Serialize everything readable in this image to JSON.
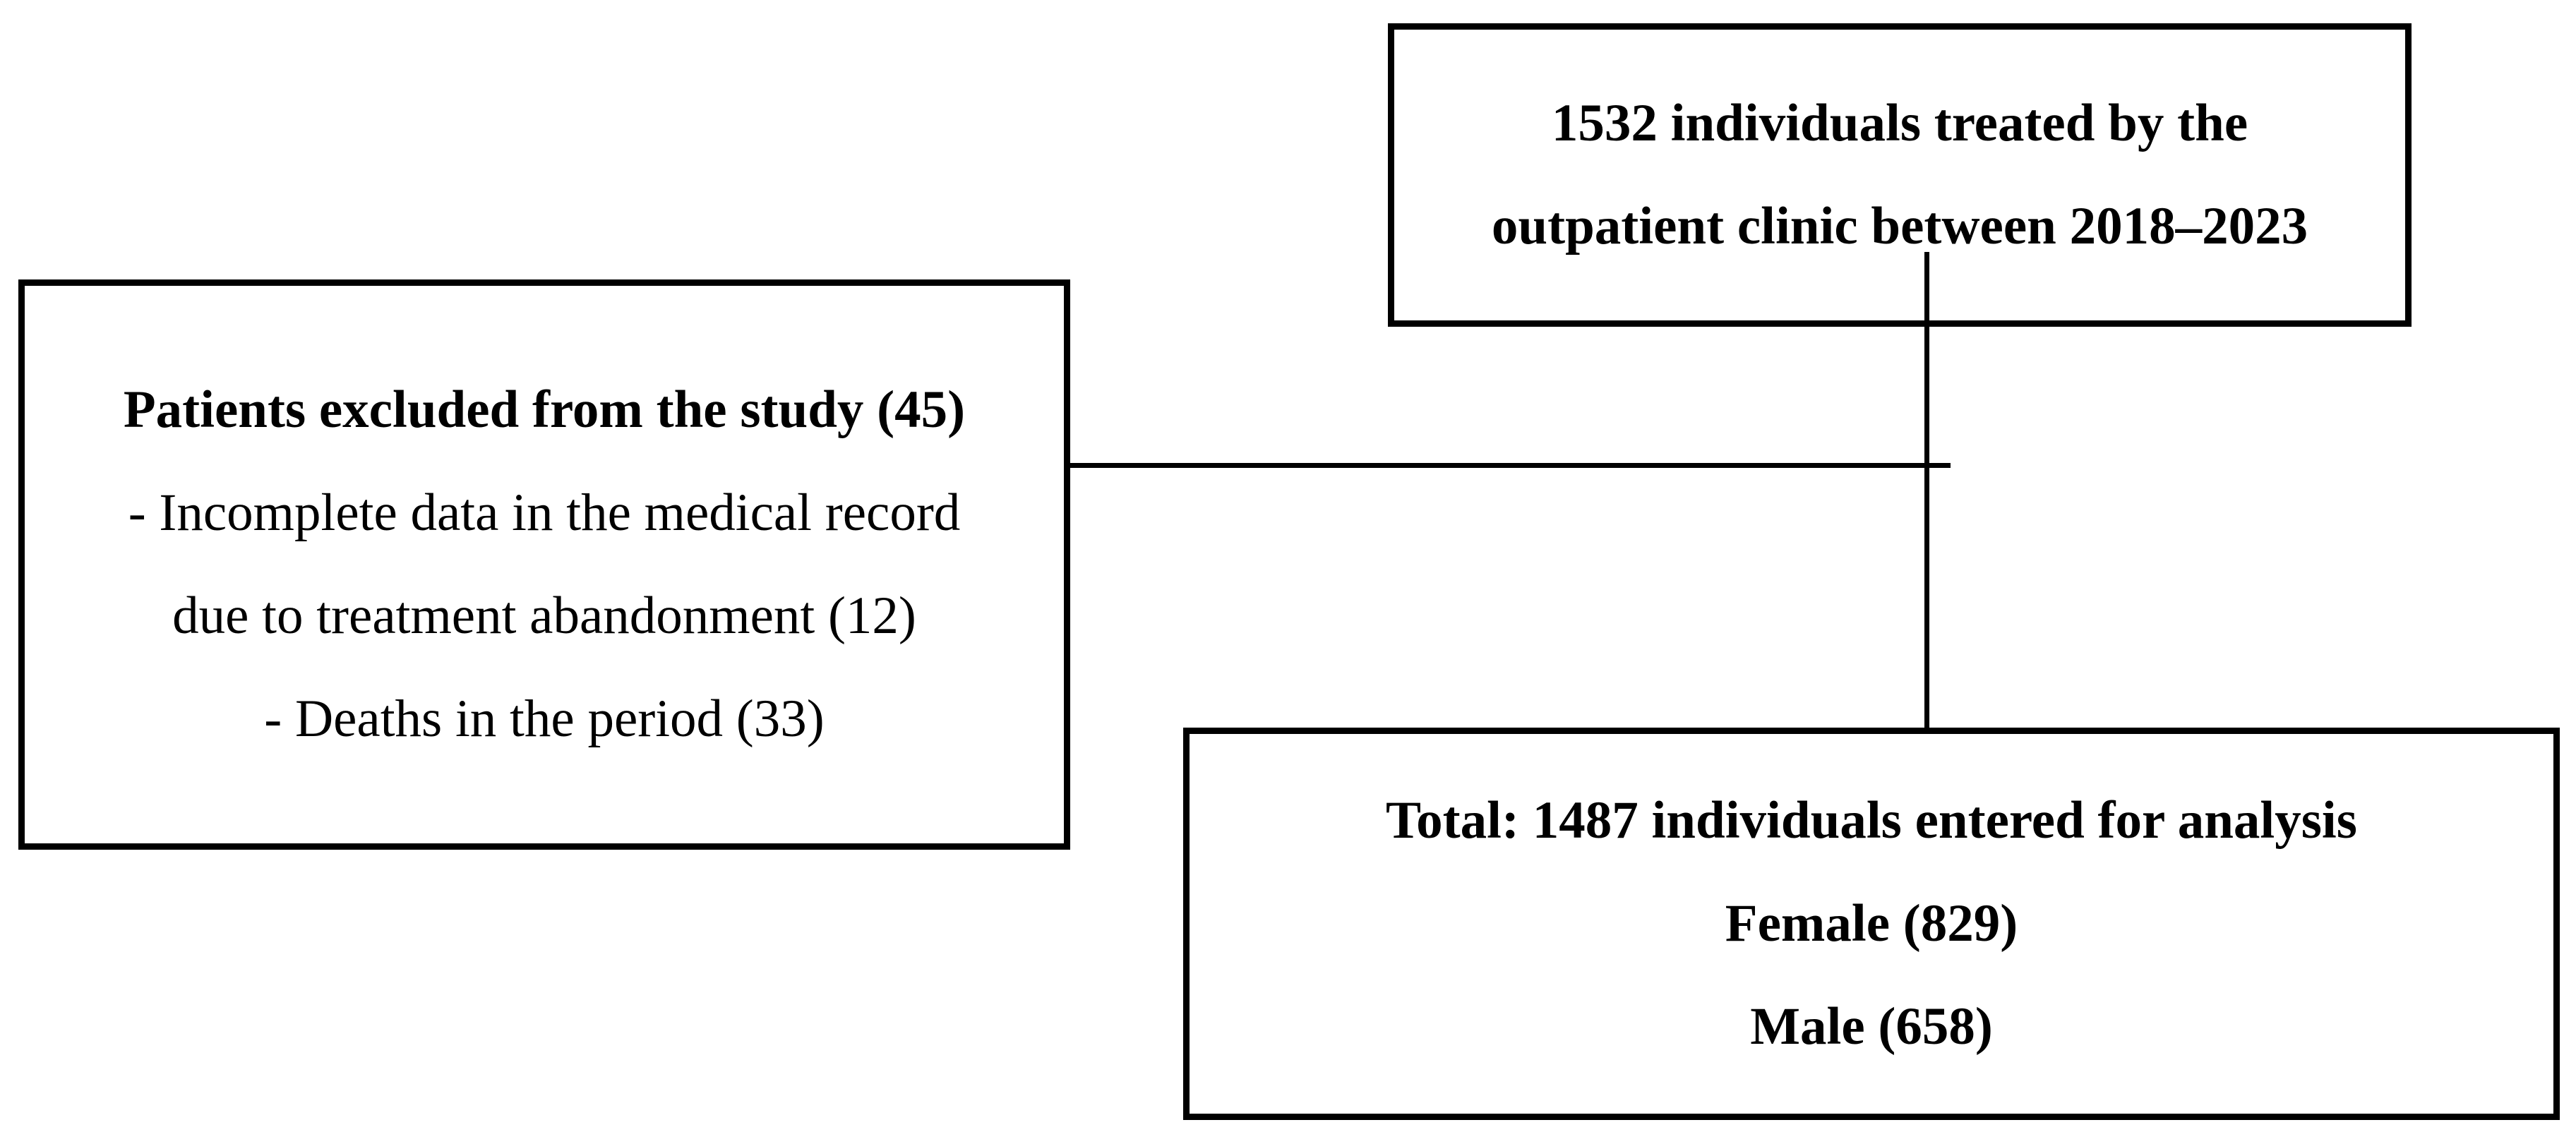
{
  "diagram": {
    "kind": "study-flowchart",
    "colors": {
      "background": "#ffffff",
      "border": "#000000",
      "text": "#000000"
    },
    "top_box": {
      "lines": [
        "1532 individuals treated by the",
        "outpatient clinic between 2018–2023"
      ]
    },
    "exclusion_box": {
      "title": "Patients excluded from the study (45)",
      "items": [
        "- Incomplete data in the medical record",
        "due to treatment abandonment (12)",
        "- Deaths in the period (33)"
      ]
    },
    "result_box": {
      "lines": [
        "Total: 1487 individuals entered for analysis",
        "Female (829)",
        "Male (658)"
      ]
    }
  }
}
